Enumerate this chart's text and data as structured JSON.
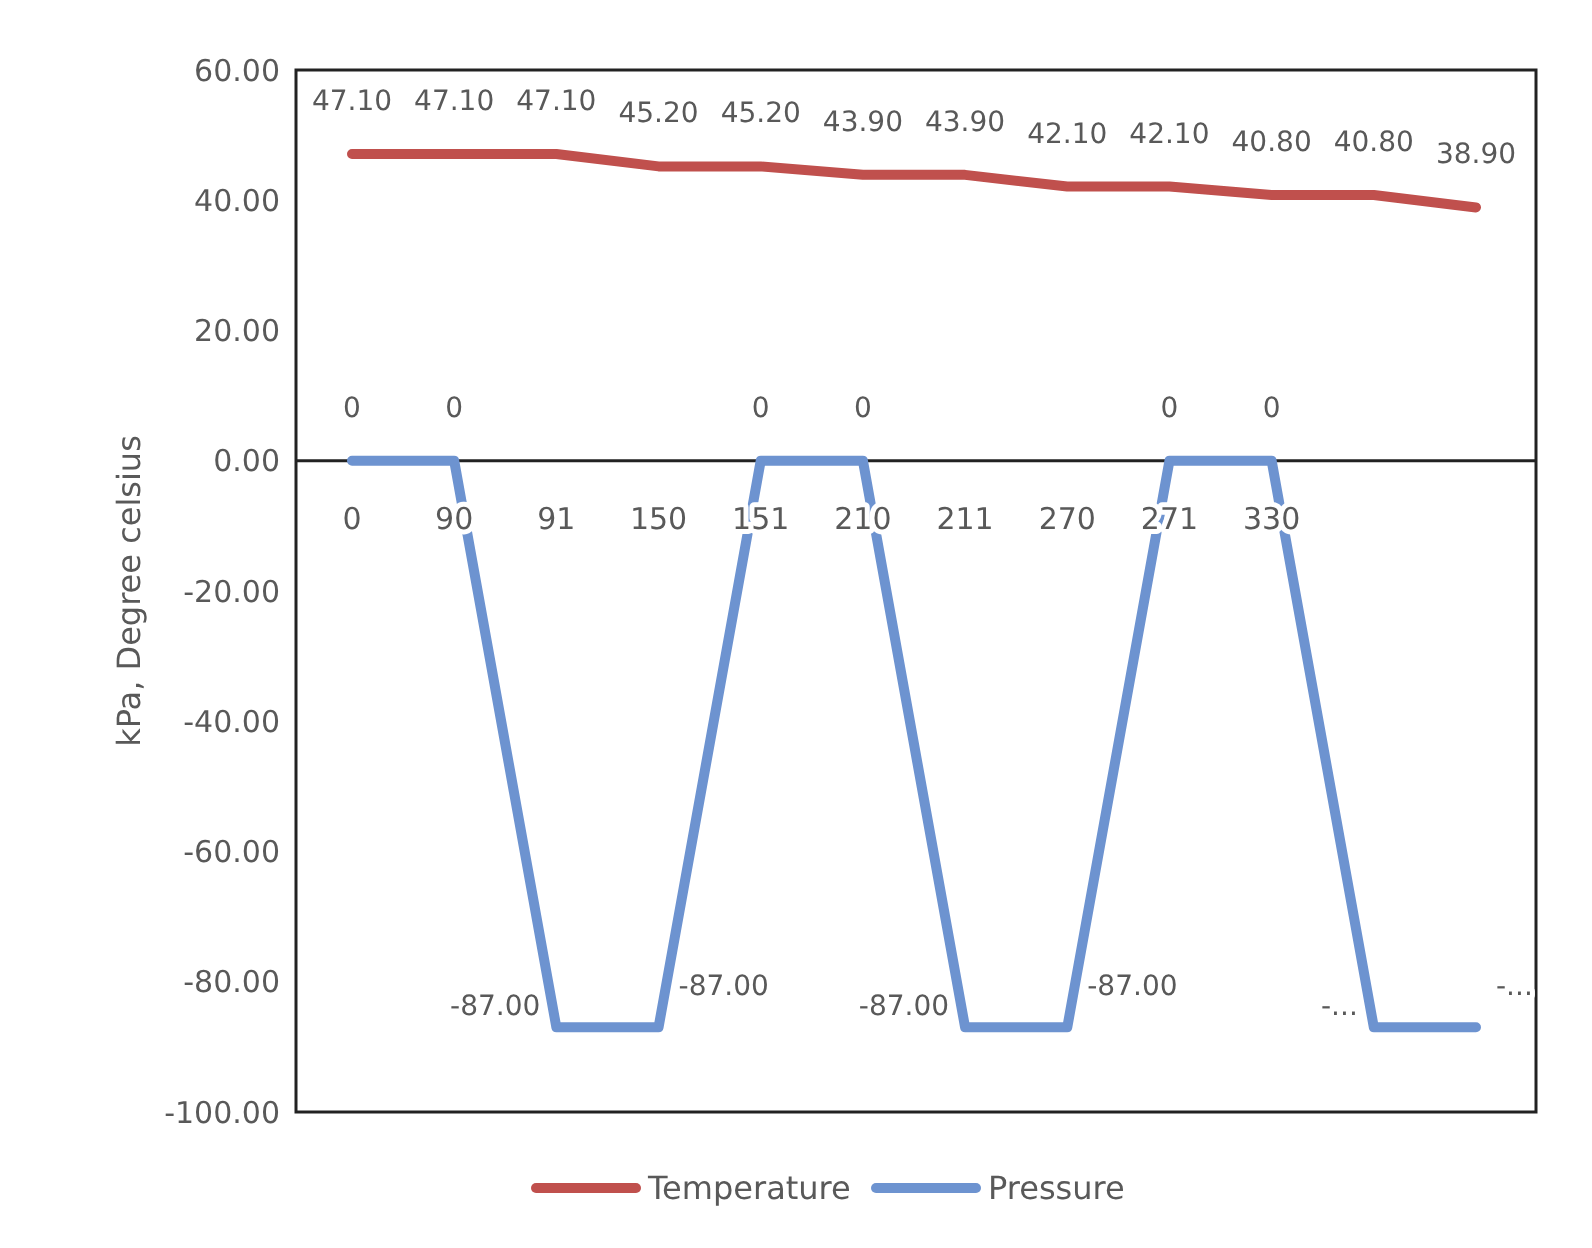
{
  "chart_data": {
    "type": "line",
    "ylabel": "kPa, Degree celsius",
    "categories": [
      "0",
      "90",
      "91",
      "150",
      "151",
      "210",
      "211",
      "270",
      "271",
      "330",
      null,
      null
    ],
    "series": [
      {
        "name": "Temperature",
        "color": "#c0504d",
        "values": [
          47.1,
          47.1,
          47.1,
          45.2,
          45.2,
          43.9,
          43.9,
          42.1,
          42.1,
          40.8,
          40.8,
          38.9
        ],
        "value_labels": [
          "47.10",
          "47.10",
          "47.10",
          "45.20",
          "45.20",
          "43.90",
          "43.90",
          "42.10",
          "42.10",
          "40.80",
          "40.80",
          "38.90"
        ]
      },
      {
        "name": "Pressure",
        "color": "#6d93d0",
        "values": [
          0,
          0,
          -87,
          -87,
          0,
          0,
          -87,
          -87,
          0,
          0,
          -87,
          -87
        ],
        "value_labels": [
          "0",
          "0",
          "-87.00",
          "-87.00",
          "0",
          "0",
          "-87.00",
          "-87.00",
          "0",
          "0",
          "-...",
          "-..."
        ]
      }
    ],
    "ylim": [
      -100,
      60
    ],
    "yticks": [
      {
        "value": -100,
        "label": "-100.00"
      },
      {
        "value": -80,
        "label": "-80.00"
      },
      {
        "value": -60,
        "label": "-60.00"
      },
      {
        "value": -40,
        "label": "-40.00"
      },
      {
        "value": -20,
        "label": "-20.00"
      },
      {
        "value": 0,
        "label": "0.00"
      },
      {
        "value": 20,
        "label": "20.00"
      },
      {
        "value": 40,
        "label": "40.00"
      },
      {
        "value": 60,
        "label": "60.00"
      }
    ],
    "grid": false,
    "legend": "bottom",
    "marker": "none",
    "line_style": "solid"
  }
}
